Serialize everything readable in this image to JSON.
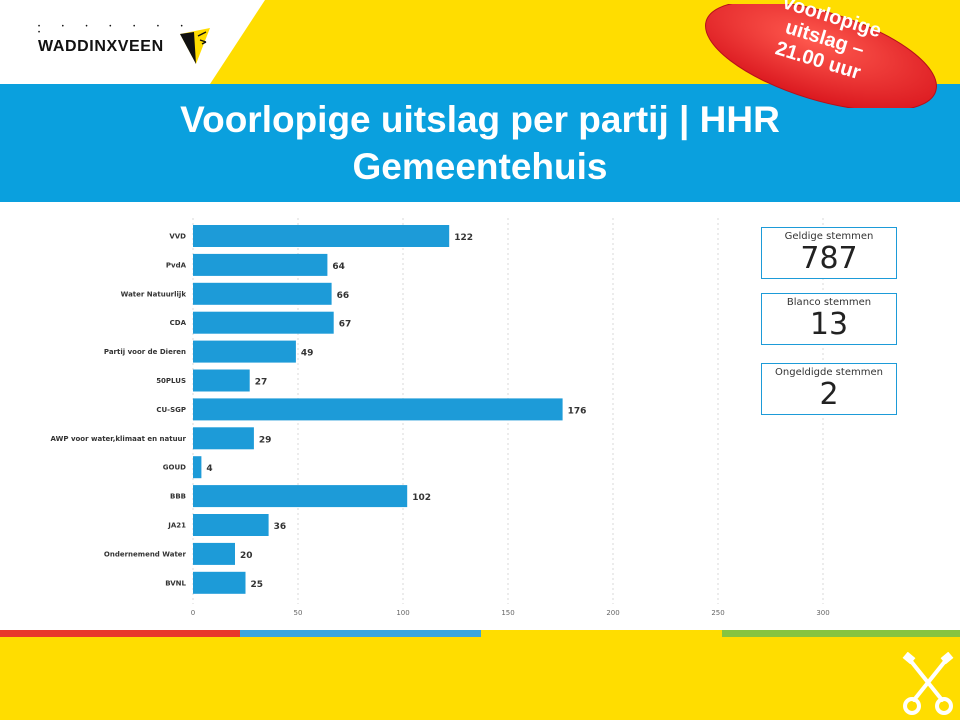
{
  "header": {
    "logo_text": "WADDINXVEEN",
    "title_line1": "Voorlopige uitslag per partij | HHR",
    "title_line2": "Gemeentehuis"
  },
  "badge": {
    "line1": "Voorlopige",
    "line2": "uitslag –",
    "line3": "21.00 uur"
  },
  "cards": [
    {
      "label": "Geldige stemmen",
      "value": "787"
    },
    {
      "label": "Blanco stemmen",
      "value": "13"
    },
    {
      "label": "Ongeldigde stemmen",
      "value": "2"
    }
  ],
  "colors": {
    "bar": "#1d9bd8",
    "banner": "#0aa0de",
    "background": "#ffdd00",
    "badge": "#e8232a",
    "stripe_red": "#e8392b",
    "stripe_blue": "#3aa6dd",
    "stripe_yellow": "#ffdd00",
    "stripe_green": "#86c440"
  },
  "chart_data": {
    "type": "bar",
    "orientation": "horizontal",
    "categories": [
      "VVD",
      "PvdA",
      "Water Natuurlijk",
      "CDA",
      "Partij voor de Dieren",
      "50PLUS",
      "CU-SGP",
      "AWP voor water,klimaat en natuur",
      "GOUD",
      "BBB",
      "JA21",
      "Ondernemend Water",
      "BVNL"
    ],
    "values": [
      122,
      64,
      66,
      67,
      49,
      27,
      176,
      29,
      4,
      102,
      36,
      20,
      25
    ],
    "xlim": [
      0,
      300
    ],
    "xticks": [
      0,
      50,
      100,
      150,
      200,
      250,
      300
    ],
    "grid": "vertical-dotted",
    "data_labels": true
  }
}
